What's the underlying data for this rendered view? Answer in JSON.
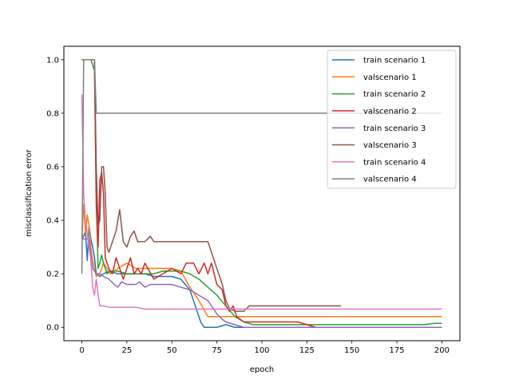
{
  "chart_data": {
    "type": "line",
    "title": "",
    "xlabel": "epoch",
    "ylabel": "misclassification error",
    "xlim": [
      -10,
      210
    ],
    "ylim": [
      -0.05,
      1.05
    ],
    "xticks": [
      0,
      25,
      50,
      75,
      100,
      125,
      150,
      175,
      200
    ],
    "yticks": [
      0.0,
      0.2,
      0.4,
      0.6,
      0.8,
      1.0
    ],
    "xtick_labels": [
      "0",
      "25",
      "50",
      "75",
      "100",
      "125",
      "150",
      "175",
      "200"
    ],
    "ytick_labels": [
      "0.0",
      "0.2",
      "0.4",
      "0.6",
      "0.8",
      "1.0"
    ],
    "grid": false,
    "legend_position": "top-right",
    "series": [
      {
        "name": "train scenario 1",
        "color": "#1f77b4",
        "points": [
          [
            0,
            0.33
          ],
          [
            1,
            0.34
          ],
          [
            2,
            0.36
          ],
          [
            3,
            0.25
          ],
          [
            4,
            0.38
          ],
          [
            5,
            0.33
          ],
          [
            6,
            0.3
          ],
          [
            7,
            0.26
          ],
          [
            8,
            0.2
          ],
          [
            10,
            0.19
          ],
          [
            12,
            0.2
          ],
          [
            15,
            0.21
          ],
          [
            20,
            0.2
          ],
          [
            25,
            0.2
          ],
          [
            30,
            0.2
          ],
          [
            35,
            0.2
          ],
          [
            40,
            0.19
          ],
          [
            45,
            0.19
          ],
          [
            50,
            0.19
          ],
          [
            55,
            0.18
          ],
          [
            60,
            0.14
          ],
          [
            62,
            0.1
          ],
          [
            64,
            0.06
          ],
          [
            66,
            0.02
          ],
          [
            68,
            0.0
          ],
          [
            70,
            0.0
          ],
          [
            75,
            0.0
          ],
          [
            80,
            0.01
          ],
          [
            85,
            0.0
          ],
          [
            90,
            0.0
          ],
          [
            95,
            0.0
          ],
          [
            100,
            0.0
          ],
          [
            110,
            0.0
          ],
          [
            125,
            0.0
          ],
          [
            150,
            0.0
          ],
          [
            175,
            0.0
          ],
          [
            200,
            0.0
          ]
        ]
      },
      {
        "name": "valscenario 1",
        "color": "#ff7f0e",
        "points": [
          [
            0,
            0.33
          ],
          [
            1,
            0.46
          ],
          [
            2,
            0.35
          ],
          [
            3,
            0.42
          ],
          [
            4,
            0.38
          ],
          [
            5,
            0.3
          ],
          [
            6,
            0.25
          ],
          [
            8,
            0.19
          ],
          [
            10,
            0.2
          ],
          [
            12,
            0.24
          ],
          [
            14,
            0.22
          ],
          [
            16,
            0.2
          ],
          [
            20,
            0.22
          ],
          [
            25,
            0.24
          ],
          [
            30,
            0.22
          ],
          [
            40,
            0.22
          ],
          [
            50,
            0.22
          ],
          [
            55,
            0.21
          ],
          [
            60,
            0.15
          ],
          [
            65,
            0.1
          ],
          [
            70,
            0.04
          ],
          [
            75,
            0.04
          ],
          [
            80,
            0.04
          ],
          [
            90,
            0.04
          ],
          [
            100,
            0.04
          ],
          [
            125,
            0.04
          ],
          [
            150,
            0.04
          ],
          [
            175,
            0.04
          ],
          [
            200,
            0.04
          ]
        ]
      },
      {
        "name": "train scenario 2",
        "color": "#2ca02c",
        "points": [
          [
            0,
            1.0
          ],
          [
            5,
            1.0
          ],
          [
            7,
            0.96
          ],
          [
            8,
            0.5
          ],
          [
            9,
            0.22
          ],
          [
            10,
            0.24
          ],
          [
            11,
            0.27
          ],
          [
            12,
            0.24
          ],
          [
            14,
            0.2
          ],
          [
            16,
            0.21
          ],
          [
            20,
            0.21
          ],
          [
            25,
            0.2
          ],
          [
            30,
            0.2
          ],
          [
            35,
            0.2
          ],
          [
            40,
            0.2
          ],
          [
            45,
            0.21
          ],
          [
            50,
            0.21
          ],
          [
            55,
            0.21
          ],
          [
            60,
            0.2
          ],
          [
            65,
            0.18
          ],
          [
            70,
            0.15
          ],
          [
            75,
            0.12
          ],
          [
            80,
            0.08
          ],
          [
            85,
            0.04
          ],
          [
            90,
            0.02
          ],
          [
            95,
            0.01
          ],
          [
            100,
            0.01
          ],
          [
            110,
            0.01
          ],
          [
            120,
            0.01
          ],
          [
            130,
            0.01
          ],
          [
            140,
            0.01
          ],
          [
            150,
            0.01
          ],
          [
            160,
            0.01
          ],
          [
            170,
            0.01
          ],
          [
            180,
            0.01
          ],
          [
            190,
            0.01
          ],
          [
            196,
            0.015
          ],
          [
            200,
            0.015
          ]
        ]
      },
      {
        "name": "valscenario 2",
        "color": "#d62728",
        "points": [
          [
            0,
            1.0
          ],
          [
            5,
            1.0
          ],
          [
            7,
            1.0
          ],
          [
            8,
            0.45
          ],
          [
            9,
            0.3
          ],
          [
            10,
            0.55
          ],
          [
            11,
            0.58
          ],
          [
            12,
            0.5
          ],
          [
            13,
            0.26
          ],
          [
            15,
            0.22
          ],
          [
            17,
            0.2
          ],
          [
            19,
            0.26
          ],
          [
            21,
            0.22
          ],
          [
            23,
            0.18
          ],
          [
            25,
            0.22
          ],
          [
            27,
            0.26
          ],
          [
            29,
            0.2
          ],
          [
            31,
            0.22
          ],
          [
            33,
            0.2
          ],
          [
            35,
            0.24
          ],
          [
            40,
            0.18
          ],
          [
            45,
            0.2
          ],
          [
            50,
            0.22
          ],
          [
            55,
            0.2
          ],
          [
            58,
            0.24
          ],
          [
            62,
            0.24
          ],
          [
            65,
            0.2
          ],
          [
            68,
            0.24
          ],
          [
            70,
            0.2
          ],
          [
            72,
            0.24
          ],
          [
            75,
            0.16
          ],
          [
            78,
            0.14
          ],
          [
            80,
            0.08
          ],
          [
            82,
            0.06
          ],
          [
            84,
            0.08
          ],
          [
            86,
            0.04
          ],
          [
            90,
            0.02
          ],
          [
            95,
            0.02
          ],
          [
            100,
            0.02
          ],
          [
            110,
            0.02
          ],
          [
            120,
            0.02
          ],
          [
            125,
            0.01
          ],
          [
            130,
            0.0
          ],
          [
            140,
            0.0
          ],
          [
            150,
            0.0
          ],
          [
            175,
            0.0
          ],
          [
            200,
            0.0
          ]
        ]
      },
      {
        "name": "train scenario 3",
        "color": "#9467bd",
        "points": [
          [
            0,
            0.33
          ],
          [
            2,
            0.33
          ],
          [
            4,
            0.33
          ],
          [
            5,
            0.27
          ],
          [
            6,
            0.22
          ],
          [
            8,
            0.2
          ],
          [
            10,
            0.2
          ],
          [
            12,
            0.19
          ],
          [
            15,
            0.18
          ],
          [
            18,
            0.16
          ],
          [
            20,
            0.15
          ],
          [
            22,
            0.17
          ],
          [
            25,
            0.16
          ],
          [
            28,
            0.16
          ],
          [
            30,
            0.16
          ],
          [
            32,
            0.17
          ],
          [
            35,
            0.15
          ],
          [
            38,
            0.16
          ],
          [
            40,
            0.16
          ],
          [
            45,
            0.16
          ],
          [
            50,
            0.16
          ],
          [
            55,
            0.15
          ],
          [
            60,
            0.14
          ],
          [
            65,
            0.12
          ],
          [
            70,
            0.1
          ],
          [
            72,
            0.08
          ],
          [
            75,
            0.05
          ],
          [
            78,
            0.03
          ],
          [
            80,
            0.02
          ],
          [
            85,
            0.01
          ],
          [
            90,
            0.0
          ],
          [
            100,
            0.0
          ],
          [
            125,
            0.0
          ],
          [
            150,
            0.0
          ],
          [
            175,
            0.0
          ],
          [
            200,
            0.0
          ]
        ]
      },
      {
        "name": "valscenario 3",
        "color": "#8c564b",
        "points": [
          [
            0,
            1.0
          ],
          [
            5,
            1.0
          ],
          [
            7,
            1.0
          ],
          [
            8,
            0.6
          ],
          [
            9,
            0.38
          ],
          [
            10,
            0.4
          ],
          [
            11,
            0.6
          ],
          [
            12,
            0.6
          ],
          [
            13,
            0.5
          ],
          [
            14,
            0.3
          ],
          [
            15,
            0.28
          ],
          [
            17,
            0.32
          ],
          [
            19,
            0.36
          ],
          [
            21,
            0.44
          ],
          [
            23,
            0.32
          ],
          [
            25,
            0.3
          ],
          [
            27,
            0.34
          ],
          [
            29,
            0.36
          ],
          [
            31,
            0.32
          ],
          [
            35,
            0.32
          ],
          [
            38,
            0.34
          ],
          [
            40,
            0.32
          ],
          [
            45,
            0.32
          ],
          [
            50,
            0.32
          ],
          [
            55,
            0.32
          ],
          [
            60,
            0.32
          ],
          [
            65,
            0.32
          ],
          [
            70,
            0.32
          ],
          [
            72,
            0.28
          ],
          [
            75,
            0.22
          ],
          [
            78,
            0.16
          ],
          [
            80,
            0.1
          ],
          [
            82,
            0.07
          ],
          [
            85,
            0.06
          ],
          [
            90,
            0.06
          ],
          [
            93,
            0.08
          ],
          [
            100,
            0.08
          ],
          [
            110,
            0.08
          ],
          [
            120,
            0.08
          ],
          [
            130,
            0.08
          ],
          [
            140,
            0.08
          ],
          [
            144,
            0.08
          ]
        ]
      },
      {
        "name": "train scenario 4",
        "color": "#e377c2",
        "points": [
          [
            0,
            0.87
          ],
          [
            1,
            0.5
          ],
          [
            2,
            0.4
          ],
          [
            3,
            0.35
          ],
          [
            4,
            0.3
          ],
          [
            5,
            0.25
          ],
          [
            6,
            0.15
          ],
          [
            7,
            0.12
          ],
          [
            8,
            0.18
          ],
          [
            9,
            0.12
          ],
          [
            10,
            0.08
          ],
          [
            12,
            0.08
          ],
          [
            15,
            0.075
          ],
          [
            20,
            0.075
          ],
          [
            25,
            0.075
          ],
          [
            30,
            0.075
          ],
          [
            35,
            0.068
          ],
          [
            40,
            0.068
          ],
          [
            50,
            0.068
          ],
          [
            60,
            0.068
          ],
          [
            75,
            0.068
          ],
          [
            100,
            0.068
          ],
          [
            125,
            0.068
          ],
          [
            150,
            0.068
          ],
          [
            175,
            0.068
          ],
          [
            200,
            0.068
          ]
        ]
      },
      {
        "name": "valscenario 4",
        "color": "#7f7f7f",
        "points": [
          [
            0,
            0.2
          ],
          [
            1,
            1.0
          ],
          [
            5,
            1.0
          ],
          [
            7,
            1.0
          ],
          [
            8,
            0.8
          ],
          [
            10,
            0.8
          ],
          [
            25,
            0.8
          ],
          [
            50,
            0.8
          ],
          [
            75,
            0.8
          ],
          [
            100,
            0.8
          ],
          [
            125,
            0.8
          ],
          [
            150,
            0.8
          ],
          [
            175,
            0.8
          ],
          [
            200,
            0.8
          ]
        ]
      }
    ]
  }
}
